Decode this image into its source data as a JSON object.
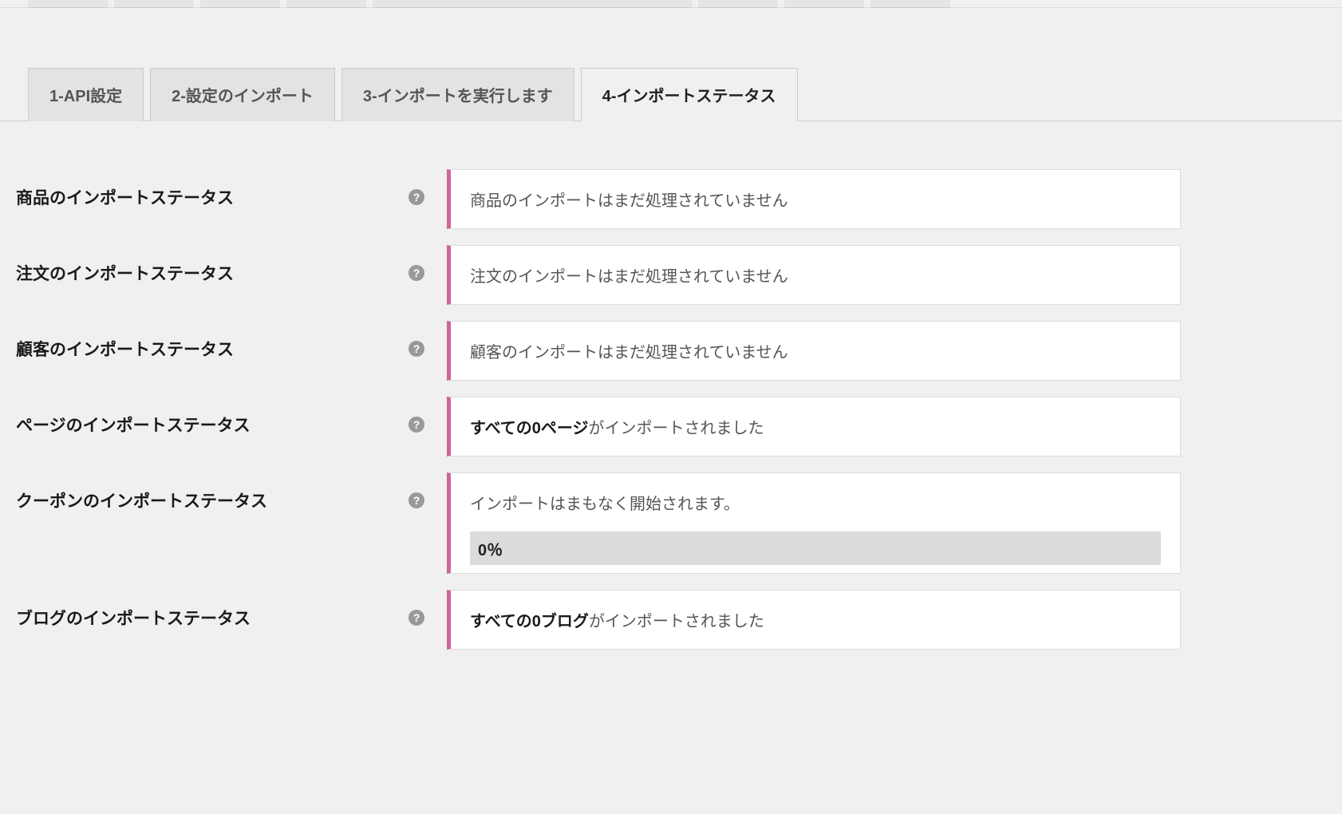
{
  "colors": {
    "bg": "#f0f0f0",
    "tab_inactive_bg": "#e3e3e3",
    "tab_border": "#ccc",
    "box_bg": "#ffffff",
    "box_border": "#ddd",
    "accent_border": "#cc6699",
    "help_icon_bg": "#999999",
    "progress_bg": "#dcdcdc",
    "text_dark": "#1a1a1a",
    "text_mid": "#555555"
  },
  "tabs": [
    {
      "label": "1-API設定",
      "active": false
    },
    {
      "label": "2-設定のインポート",
      "active": false
    },
    {
      "label": "3-インポートを実行します",
      "active": false
    },
    {
      "label": "4-インポートステータス",
      "active": true
    }
  ],
  "statuses": [
    {
      "id": "products",
      "label": "商品のインポートステータス",
      "message": "商品のインポートはまだ処理されていません",
      "type": "plain"
    },
    {
      "id": "orders",
      "label": "注文のインポートステータス",
      "message": "注文のインポートはまだ処理されていません",
      "type": "plain"
    },
    {
      "id": "customers",
      "label": "顧客のインポートステータス",
      "message": "顧客のインポートはまだ処理されていません",
      "type": "plain"
    },
    {
      "id": "pages",
      "label": "ページのインポートステータス",
      "bold_part": "すべての0ページ",
      "normal_part": "がインポートされました",
      "type": "bold-plain"
    },
    {
      "id": "coupons",
      "label": "クーポンのインポートステータス",
      "message": "インポートはまもなく開始されます。",
      "progress_text": "0％",
      "type": "progress"
    },
    {
      "id": "blogs",
      "label": "ブログのインポートステータス",
      "bold_part": "すべての0ブログ",
      "normal_part": "がインポートされました",
      "type": "bold-plain"
    }
  ]
}
